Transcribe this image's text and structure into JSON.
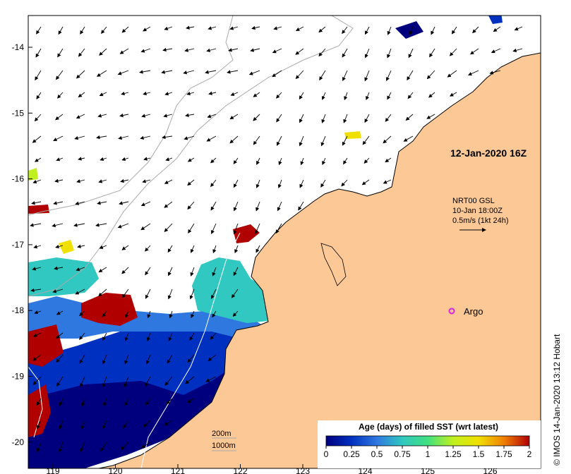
{
  "map": {
    "date_label": "12-Jan-2020 16Z",
    "current_legend": {
      "line1": "NRT00 GSL",
      "line2": "10-Jan 18:00Z",
      "line3": "0.5m/s (1kt 24h)"
    },
    "argo_label": "Argo",
    "bathymetry_labels": [
      "200m",
      "1000m"
    ],
    "colorbar": {
      "title": "Age (days) of filled SST (wrt latest)",
      "ticks": [
        "0",
        "0.25",
        "0.5",
        "0.75",
        "1",
        "1.25",
        "1.5",
        "1.75",
        "2"
      ],
      "colors": [
        "#00007f",
        "#0030c0",
        "#2f78e0",
        "#30c8c0",
        "#40e080",
        "#c0f020",
        "#f0e000",
        "#f08000",
        "#b00000"
      ]
    },
    "lat_ticks": [
      "-14",
      "-15",
      "-16",
      "-17",
      "-18",
      "-19",
      "-20"
    ],
    "lon_ticks": [
      "119",
      "120",
      "121",
      "122",
      "123",
      "124",
      "125",
      "126"
    ],
    "credit": "© IMOS 14-Jan-2020 13:12 Hobart",
    "colors": {
      "land": "#fcc896",
      "coast": "#000000",
      "bathy": "#aaaaaa"
    }
  }
}
